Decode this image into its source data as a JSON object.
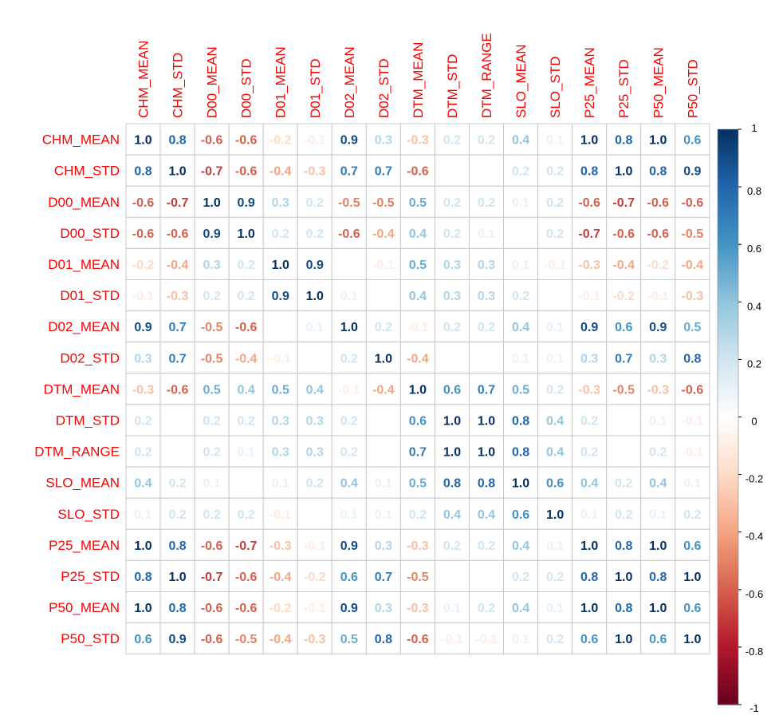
{
  "chart_data": {
    "type": "heatmap",
    "variables": [
      "CHM_MEAN",
      "CHM_STD",
      "D00_MEAN",
      "D00_STD",
      "D01_MEAN",
      "D01_STD",
      "D02_MEAN",
      "D02_STD",
      "DTM_MEAN",
      "DTM_STD",
      "DTM_RANGE",
      "SLO_MEAN",
      "SLO_STD",
      "P25_MEAN",
      "P25_STD",
      "P50_MEAN",
      "P50_STD"
    ],
    "matrix": [
      [
        1.0,
        0.8,
        -0.6,
        -0.6,
        -0.2,
        -0.1,
        0.9,
        0.3,
        -0.3,
        0.2,
        0.2,
        0.4,
        0.1,
        1.0,
        0.8,
        1.0,
        0.6
      ],
      [
        0.8,
        1.0,
        -0.7,
        -0.6,
        -0.4,
        -0.3,
        0.7,
        0.7,
        -0.6,
        0.0,
        0.0,
        0.2,
        0.2,
        0.8,
        1.0,
        0.8,
        0.9
      ],
      [
        -0.6,
        -0.7,
        1.0,
        0.9,
        0.3,
        0.2,
        -0.5,
        -0.5,
        0.5,
        0.2,
        0.2,
        0.1,
        0.2,
        -0.6,
        -0.7,
        -0.6,
        -0.6
      ],
      [
        -0.6,
        -0.6,
        0.9,
        1.0,
        0.2,
        0.2,
        -0.6,
        -0.4,
        0.4,
        0.2,
        0.1,
        0.0,
        0.2,
        -0.7,
        -0.6,
        -0.6,
        -0.5
      ],
      [
        -0.2,
        -0.4,
        0.3,
        0.2,
        1.0,
        0.9,
        null,
        -0.1,
        0.5,
        0.3,
        0.3,
        0.1,
        -0.1,
        -0.3,
        -0.4,
        -0.2,
        -0.4
      ],
      [
        -0.1,
        -0.3,
        0.2,
        0.2,
        0.9,
        1.0,
        0.1,
        0.0,
        0.4,
        0.3,
        0.3,
        0.2,
        0.0,
        -0.1,
        -0.2,
        -0.1,
        -0.3
      ],
      [
        0.9,
        0.7,
        -0.5,
        -0.6,
        null,
        0.1,
        1.0,
        0.2,
        -0.1,
        0.2,
        0.2,
        0.4,
        0.1,
        0.9,
        0.6,
        0.9,
        0.5
      ],
      [
        0.3,
        0.7,
        -0.5,
        -0.4,
        -0.1,
        0.0,
        0.2,
        1.0,
        -0.4,
        0.0,
        0.0,
        0.1,
        0.1,
        0.3,
        0.7,
        0.3,
        0.8
      ],
      [
        -0.3,
        -0.6,
        0.5,
        0.4,
        0.5,
        0.4,
        -0.1,
        -0.4,
        1.0,
        0.6,
        0.7,
        0.5,
        0.2,
        -0.3,
        -0.5,
        -0.3,
        -0.6
      ],
      [
        0.2,
        0.0,
        0.2,
        0.2,
        0.3,
        0.3,
        0.2,
        0.0,
        0.6,
        1.0,
        1.0,
        0.8,
        0.4,
        0.2,
        0.0,
        0.1,
        -0.1
      ],
      [
        0.2,
        0.0,
        0.2,
        0.1,
        0.3,
        0.3,
        0.2,
        0.0,
        0.7,
        1.0,
        1.0,
        0.8,
        0.4,
        0.2,
        0.0,
        0.2,
        -0.1
      ],
      [
        0.4,
        0.2,
        0.1,
        0.0,
        0.1,
        0.2,
        0.4,
        0.1,
        0.5,
        0.8,
        0.8,
        1.0,
        0.6,
        0.4,
        0.2,
        0.4,
        0.1
      ],
      [
        0.1,
        0.2,
        0.2,
        0.2,
        -0.1,
        0.0,
        0.1,
        0.1,
        0.2,
        0.4,
        0.4,
        0.6,
        1.0,
        0.1,
        0.2,
        0.1,
        0.2
      ],
      [
        1.0,
        0.8,
        -0.6,
        -0.7,
        -0.3,
        -0.1,
        0.9,
        0.3,
        -0.3,
        0.2,
        0.2,
        0.4,
        0.1,
        1.0,
        0.8,
        1.0,
        0.6
      ],
      [
        0.8,
        1.0,
        -0.7,
        -0.6,
        -0.4,
        -0.2,
        0.6,
        0.7,
        -0.5,
        0.0,
        0.0,
        0.2,
        0.2,
        0.8,
        1.0,
        0.8,
        1.0
      ],
      [
        1.0,
        0.8,
        -0.6,
        -0.6,
        -0.2,
        -0.1,
        0.9,
        0.3,
        -0.3,
        0.1,
        0.2,
        0.4,
        0.1,
        1.0,
        0.8,
        1.0,
        0.6
      ],
      [
        0.6,
        0.9,
        -0.6,
        -0.5,
        -0.4,
        -0.3,
        0.5,
        0.8,
        -0.6,
        -0.1,
        -0.1,
        0.1,
        0.2,
        0.6,
        1.0,
        0.6,
        1.0
      ]
    ],
    "colorbar": {
      "range": [
        -1,
        1
      ],
      "ticks": [
        "1",
        "0.8",
        "0.6",
        "0.4",
        "0.2",
        "0",
        "-0.2",
        "-0.4",
        "-0.6",
        "-0.8",
        "-1"
      ],
      "low_color": "#67001f",
      "mid_color": "#ffffff",
      "high_color": "#053061"
    },
    "label_color": "#ff0000",
    "grid_color": "#c8c8c8"
  }
}
